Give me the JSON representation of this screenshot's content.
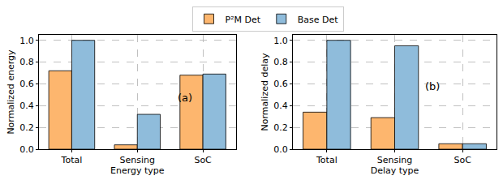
{
  "chart_data": [
    {
      "type": "bar",
      "x_label": "Energy type",
      "y_label": "Normalized energy",
      "categories": [
        "Total",
        "Sensing",
        "SoC"
      ],
      "series": [
        {
          "name": "P²M Det",
          "color": "#fdb66e",
          "values": [
            0.72,
            0.04,
            0.68
          ]
        },
        {
          "name": "Base Det",
          "color": "#8fbcdb",
          "values": [
            1.0,
            0.32,
            0.69
          ]
        }
      ],
      "ylim": [
        0,
        1.05
      ],
      "yticks": [
        {
          "value": 0,
          "label": "0.0"
        },
        0.2,
        0.4,
        0.6,
        0.8,
        {
          "value": 1,
          "label": "1.0"
        }
      ],
      "grid": true,
      "legend": "top",
      "annotations": [
        {
          "text": "(a)"
        }
      ]
    },
    {
      "type": "bar",
      "x_label": "Delay type",
      "y_label": "Normalized delay",
      "categories": [
        "Total",
        "Sensing",
        "SoC"
      ],
      "series": [
        {
          "name": "P²M Det",
          "color": "#fdb66e",
          "values": [
            0.34,
            0.29,
            0.05
          ]
        },
        {
          "name": "Base Det",
          "color": "#8fbcdb",
          "values": [
            1.0,
            0.95,
            0.05
          ]
        }
      ],
      "ylim": [
        0,
        1.05
      ],
      "yticks": [
        {
          "value": 0,
          "label": "0.0"
        },
        0.2,
        0.4,
        0.6,
        0.8,
        {
          "value": 1,
          "label": "1.0"
        }
      ],
      "grid": true,
      "legend": "top",
      "annotations": [
        {
          "text": "(b)"
        }
      ]
    }
  ]
}
